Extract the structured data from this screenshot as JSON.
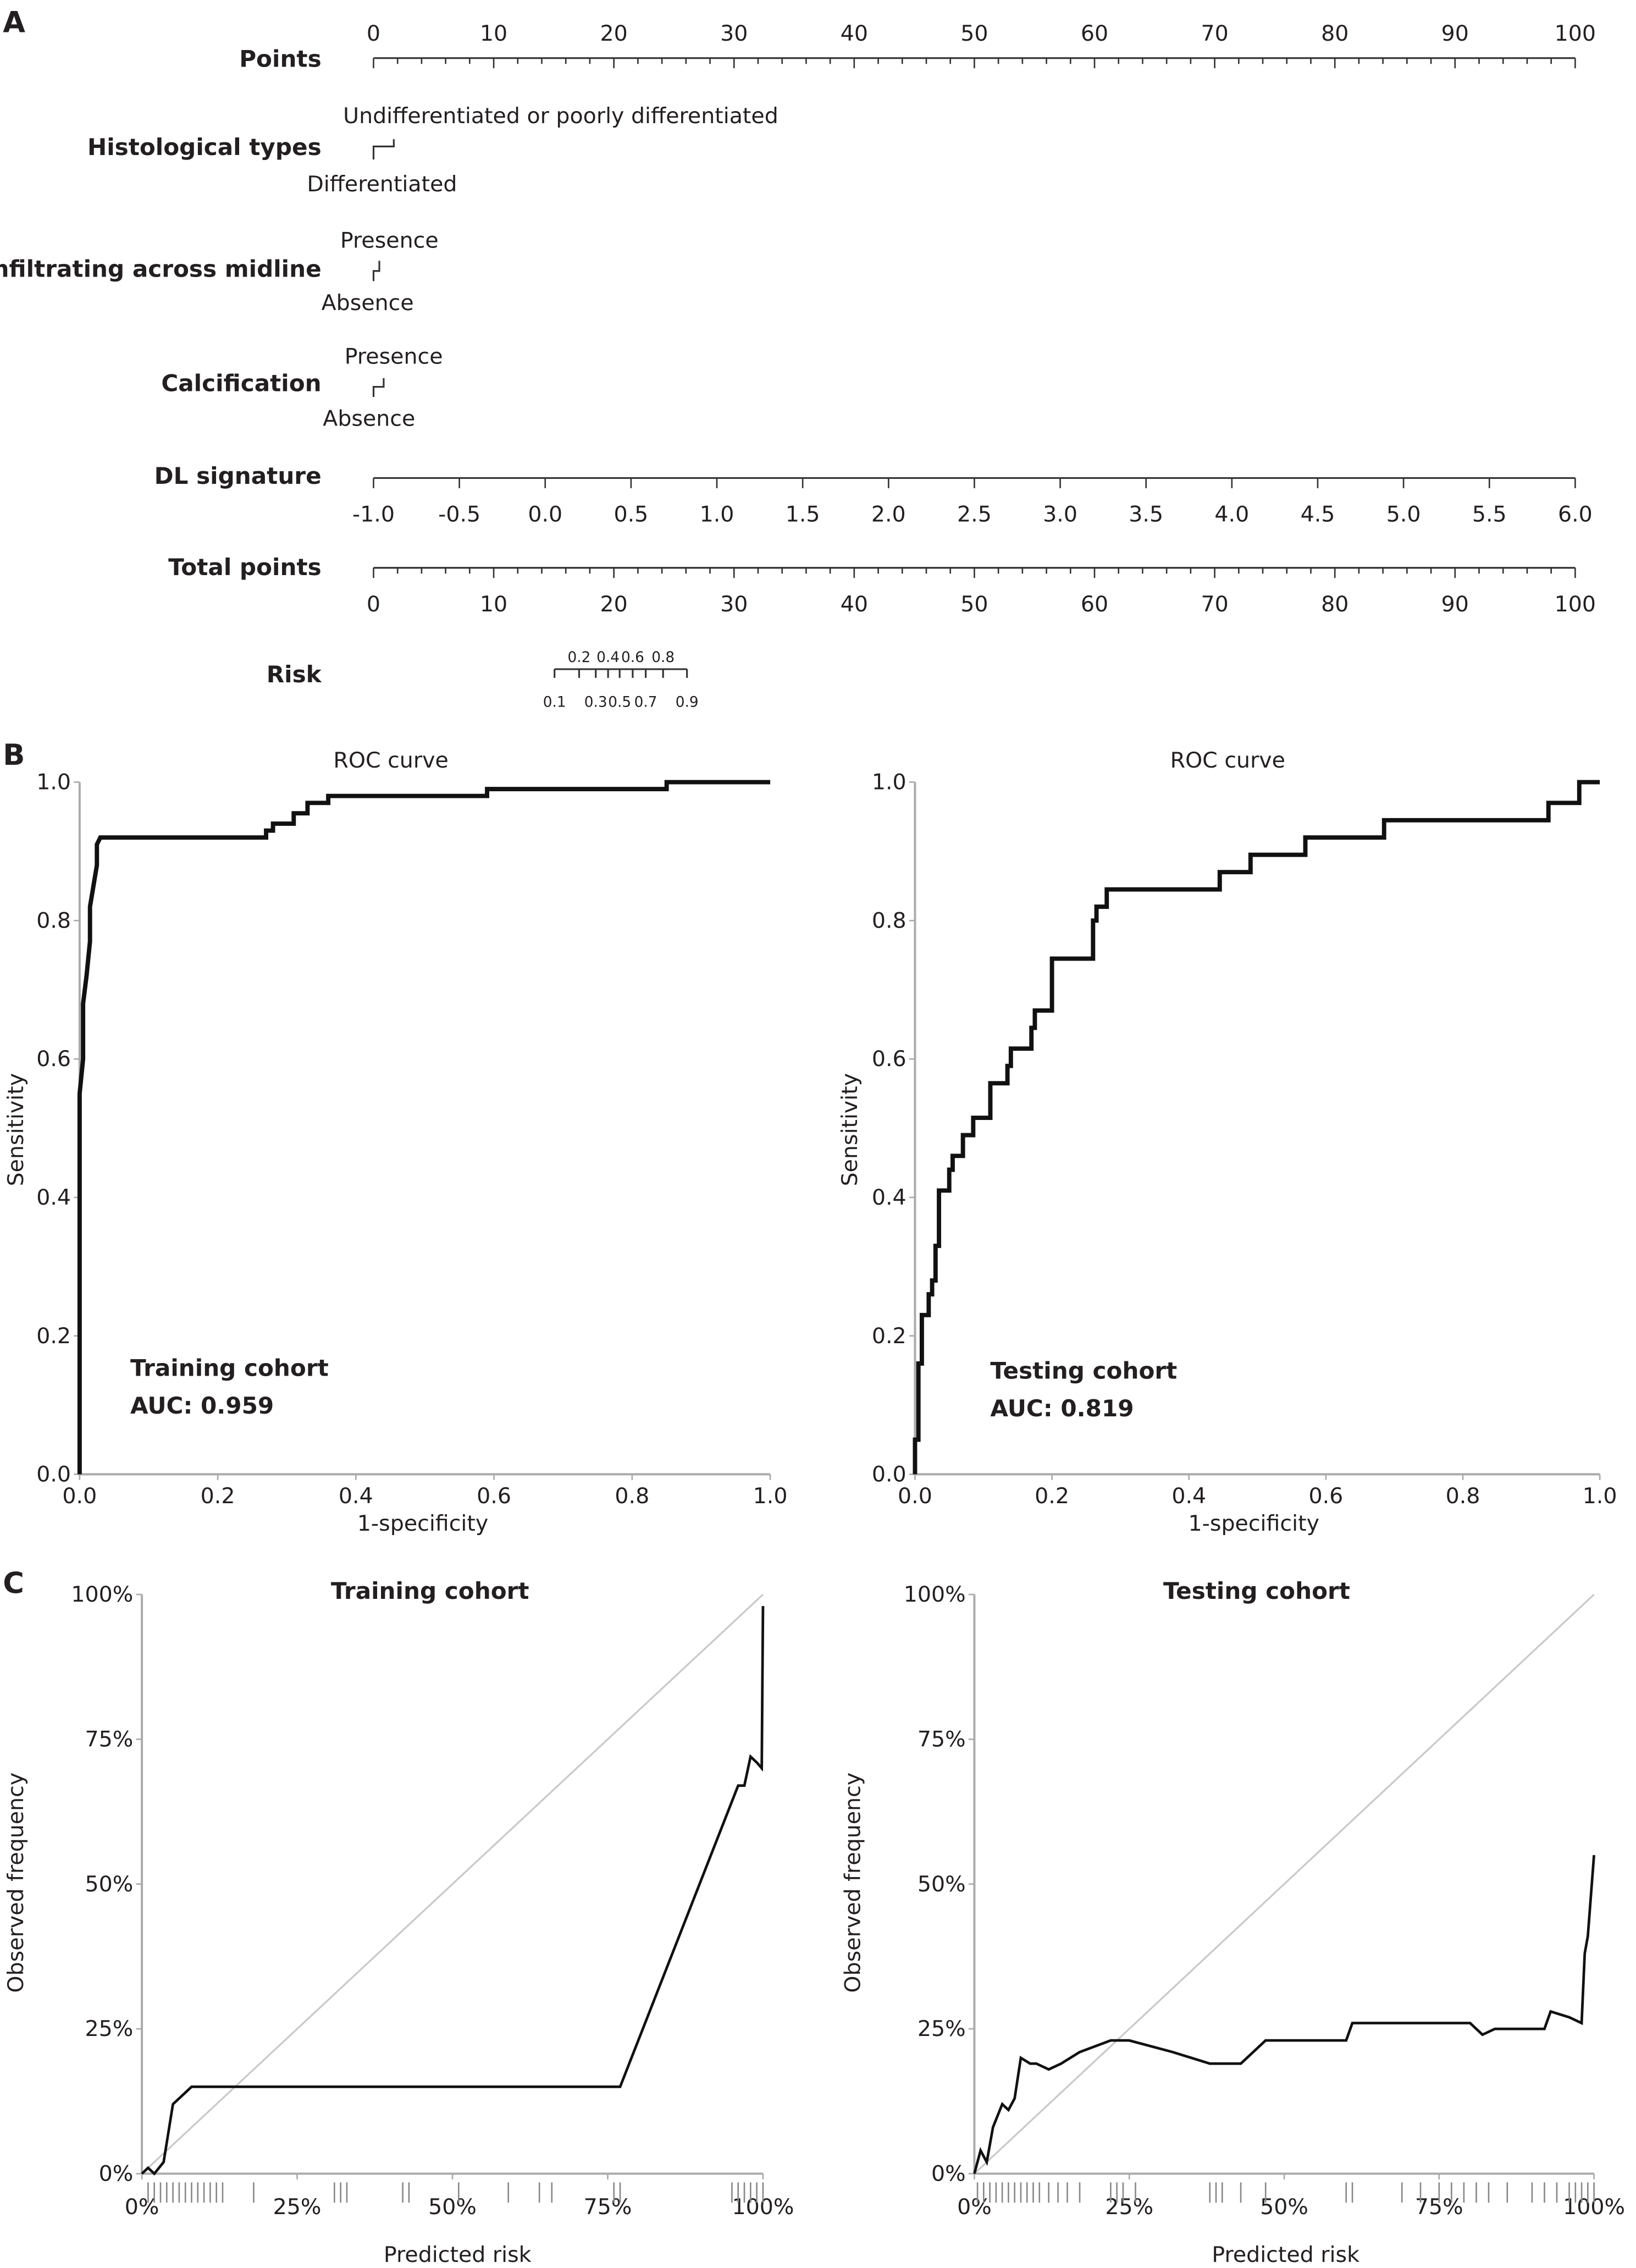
{
  "panels": {
    "a": "A",
    "b": "B",
    "c": "C"
  },
  "nomogram": {
    "points": {
      "label": "Points",
      "ticks": [
        0,
        10,
        20,
        30,
        40,
        50,
        60,
        70,
        80,
        90,
        100
      ]
    },
    "histological": {
      "label": "Histological types",
      "upper": "Undifferentiated or poorly differentiated",
      "lower": "Differentiated"
    },
    "infiltrating": {
      "label": "Infiltrating across midline",
      "upper": "Presence",
      "lower": "Absence"
    },
    "calcification": {
      "label": "Calcification",
      "upper": "Presence",
      "lower": "Absence"
    },
    "dl_signature": {
      "label": "DL signature",
      "ticks": [
        "-1.0",
        "-0.5",
        "0.0",
        "0.5",
        "1.0",
        "1.5",
        "2.0",
        "2.5",
        "3.0",
        "3.5",
        "4.0",
        "4.5",
        "5.0",
        "5.5",
        "6.0"
      ]
    },
    "total_points": {
      "label": "Total points",
      "ticks": [
        0,
        10,
        20,
        30,
        40,
        50,
        60,
        70,
        80,
        90,
        100
      ]
    },
    "risk": {
      "label": "Risk",
      "upper_ticks": [
        "0.2",
        "0.4",
        "0.6",
        "0.8"
      ],
      "lower_ticks": [
        "0.1",
        "0.3",
        "0.5",
        "0.7",
        "0.9"
      ]
    }
  },
  "chart_data": [
    {
      "type": "line",
      "panel": "B",
      "title": "ROC curve",
      "xlabel": "1-specificity",
      "ylabel": "Sensitivity",
      "xlim": [
        0,
        1
      ],
      "ylim": [
        0,
        1
      ],
      "xticks": [
        "0.0",
        "0.2",
        "0.4",
        "0.6",
        "0.8",
        "1.0"
      ],
      "yticks": [
        "0.0",
        "0.2",
        "0.4",
        "0.6",
        "0.8",
        "1.0"
      ],
      "annotation": [
        "Training cohort",
        "AUC: 0.959"
      ],
      "points": [
        [
          0,
          0
        ],
        [
          0,
          0.55
        ],
        [
          0.005,
          0.6
        ],
        [
          0.005,
          0.68
        ],
        [
          0.01,
          0.72
        ],
        [
          0.015,
          0.77
        ],
        [
          0.015,
          0.82
        ],
        [
          0.02,
          0.85
        ],
        [
          0.025,
          0.88
        ],
        [
          0.025,
          0.91
        ],
        [
          0.03,
          0.92
        ],
        [
          0.27,
          0.92
        ],
        [
          0.27,
          0.93
        ],
        [
          0.28,
          0.93
        ],
        [
          0.28,
          0.94
        ],
        [
          0.31,
          0.94
        ],
        [
          0.31,
          0.955
        ],
        [
          0.33,
          0.955
        ],
        [
          0.33,
          0.97
        ],
        [
          0.36,
          0.97
        ],
        [
          0.36,
          0.98
        ],
        [
          0.59,
          0.98
        ],
        [
          0.59,
          0.99
        ],
        [
          0.85,
          0.99
        ],
        [
          0.85,
          1
        ],
        [
          1,
          1
        ]
      ]
    },
    {
      "type": "line",
      "panel": "B",
      "title": "ROC curve",
      "xlabel": "1-specificity",
      "ylabel": "Sensitivity",
      "xlim": [
        0,
        1
      ],
      "ylim": [
        0,
        1
      ],
      "xticks": [
        "0.0",
        "0.2",
        "0.4",
        "0.6",
        "0.8",
        "1.0"
      ],
      "yticks": [
        "0.0",
        "0.2",
        "0.4",
        "0.6",
        "0.8",
        "1.0"
      ],
      "annotation": [
        "Testing cohort",
        "AUC: 0.819"
      ],
      "points": [
        [
          0,
          0
        ],
        [
          0,
          0.05
        ],
        [
          0.005,
          0.05
        ],
        [
          0.005,
          0.16
        ],
        [
          0.01,
          0.16
        ],
        [
          0.01,
          0.23
        ],
        [
          0.02,
          0.23
        ],
        [
          0.02,
          0.26
        ],
        [
          0.025,
          0.26
        ],
        [
          0.025,
          0.28
        ],
        [
          0.03,
          0.28
        ],
        [
          0.03,
          0.33
        ],
        [
          0.035,
          0.33
        ],
        [
          0.035,
          0.38
        ],
        [
          0.035,
          0.41
        ],
        [
          0.05,
          0.41
        ],
        [
          0.05,
          0.44
        ],
        [
          0.055,
          0.44
        ],
        [
          0.055,
          0.46
        ],
        [
          0.07,
          0.46
        ],
        [
          0.07,
          0.49
        ],
        [
          0.085,
          0.49
        ],
        [
          0.085,
          0.515
        ],
        [
          0.11,
          0.515
        ],
        [
          0.11,
          0.565
        ],
        [
          0.135,
          0.565
        ],
        [
          0.135,
          0.59
        ],
        [
          0.14,
          0.59
        ],
        [
          0.14,
          0.615
        ],
        [
          0.17,
          0.615
        ],
        [
          0.17,
          0.645
        ],
        [
          0.175,
          0.645
        ],
        [
          0.175,
          0.67
        ],
        [
          0.2,
          0.67
        ],
        [
          0.2,
          0.745
        ],
        [
          0.26,
          0.745
        ],
        [
          0.26,
          0.8
        ],
        [
          0.265,
          0.8
        ],
        [
          0.265,
          0.82
        ],
        [
          0.28,
          0.82
        ],
        [
          0.28,
          0.845
        ],
        [
          0.445,
          0.845
        ],
        [
          0.445,
          0.87
        ],
        [
          0.49,
          0.87
        ],
        [
          0.49,
          0.895
        ],
        [
          0.57,
          0.895
        ],
        [
          0.57,
          0.92
        ],
        [
          0.685,
          0.92
        ],
        [
          0.685,
          0.945
        ],
        [
          0.925,
          0.945
        ],
        [
          0.925,
          0.97
        ],
        [
          0.97,
          0.97
        ],
        [
          0.97,
          1
        ],
        [
          1,
          1
        ]
      ]
    },
    {
      "type": "line",
      "panel": "C",
      "title": "Training cohort",
      "xlabel": "Predicted risk",
      "ylabel": "Observed frequency",
      "xlim": [
        0,
        1
      ],
      "ylim": [
        0,
        1
      ],
      "xticks": [
        "0%",
        "25%",
        "50%",
        "75%",
        "100%"
      ],
      "yticks": [
        "0%",
        "25%",
        "50%",
        "75%",
        "100%"
      ],
      "reference_line": true,
      "reference_color": "#c8c8c8",
      "points": [
        [
          0,
          0
        ],
        [
          0.01,
          0.01
        ],
        [
          0.02,
          0
        ],
        [
          0.035,
          0.02
        ],
        [
          0.05,
          0.12
        ],
        [
          0.07,
          0.14
        ],
        [
          0.08,
          0.15
        ],
        [
          0.77,
          0.15
        ],
        [
          0.96,
          0.67
        ],
        [
          0.97,
          0.67
        ],
        [
          0.98,
          0.72
        ],
        [
          0.99,
          0.71
        ],
        [
          0.998,
          0.7
        ],
        [
          1.0,
          0.98
        ]
      ],
      "rug": [
        0.01,
        0.02,
        0.03,
        0.04,
        0.05,
        0.06,
        0.07,
        0.08,
        0.09,
        0.1,
        0.11,
        0.12,
        0.13,
        0.18,
        0.31,
        0.32,
        0.33,
        0.42,
        0.43,
        0.51,
        0.59,
        0.64,
        0.66,
        0.76,
        0.77,
        0.95,
        0.96,
        0.97,
        0.98,
        0.99,
        1.0
      ]
    },
    {
      "type": "line",
      "panel": "C",
      "title": "Testing cohort",
      "xlabel": "Predicted risk",
      "ylabel": "Observed frequency",
      "xlim": [
        0,
        1
      ],
      "ylim": [
        0,
        1
      ],
      "xticks": [
        "0%",
        "25%",
        "50%",
        "75%",
        "100%"
      ],
      "yticks": [
        "0%",
        "25%",
        "50%",
        "75%",
        "100%"
      ],
      "reference_line": true,
      "reference_color": "#c8c8c8",
      "points": [
        [
          0,
          0
        ],
        [
          0.01,
          0.04
        ],
        [
          0.02,
          0.02
        ],
        [
          0.03,
          0.08
        ],
        [
          0.045,
          0.12
        ],
        [
          0.055,
          0.11
        ],
        [
          0.065,
          0.13
        ],
        [
          0.075,
          0.2
        ],
        [
          0.09,
          0.19
        ],
        [
          0.1,
          0.19
        ],
        [
          0.12,
          0.18
        ],
        [
          0.14,
          0.19
        ],
        [
          0.17,
          0.21
        ],
        [
          0.22,
          0.23
        ],
        [
          0.25,
          0.23
        ],
        [
          0.32,
          0.21
        ],
        [
          0.38,
          0.19
        ],
        [
          0.43,
          0.19
        ],
        [
          0.47,
          0.23
        ],
        [
          0.6,
          0.23
        ],
        [
          0.61,
          0.26
        ],
        [
          0.8,
          0.26
        ],
        [
          0.82,
          0.24
        ],
        [
          0.84,
          0.25
        ],
        [
          0.92,
          0.25
        ],
        [
          0.93,
          0.28
        ],
        [
          0.96,
          0.27
        ],
        [
          0.98,
          0.26
        ],
        [
          0.985,
          0.38
        ],
        [
          0.99,
          0.41
        ],
        [
          1.0,
          0.55
        ]
      ],
      "rug": [
        0.005,
        0.015,
        0.025,
        0.035,
        0.045,
        0.055,
        0.065,
        0.075,
        0.085,
        0.095,
        0.105,
        0.12,
        0.135,
        0.15,
        0.17,
        0.22,
        0.23,
        0.24,
        0.26,
        0.38,
        0.39,
        0.4,
        0.43,
        0.47,
        0.6,
        0.61,
        0.69,
        0.72,
        0.75,
        0.77,
        0.79,
        0.81,
        0.83,
        0.86,
        0.9,
        0.92,
        0.94,
        0.96,
        0.97,
        0.98,
        0.99,
        1.0
      ]
    }
  ]
}
